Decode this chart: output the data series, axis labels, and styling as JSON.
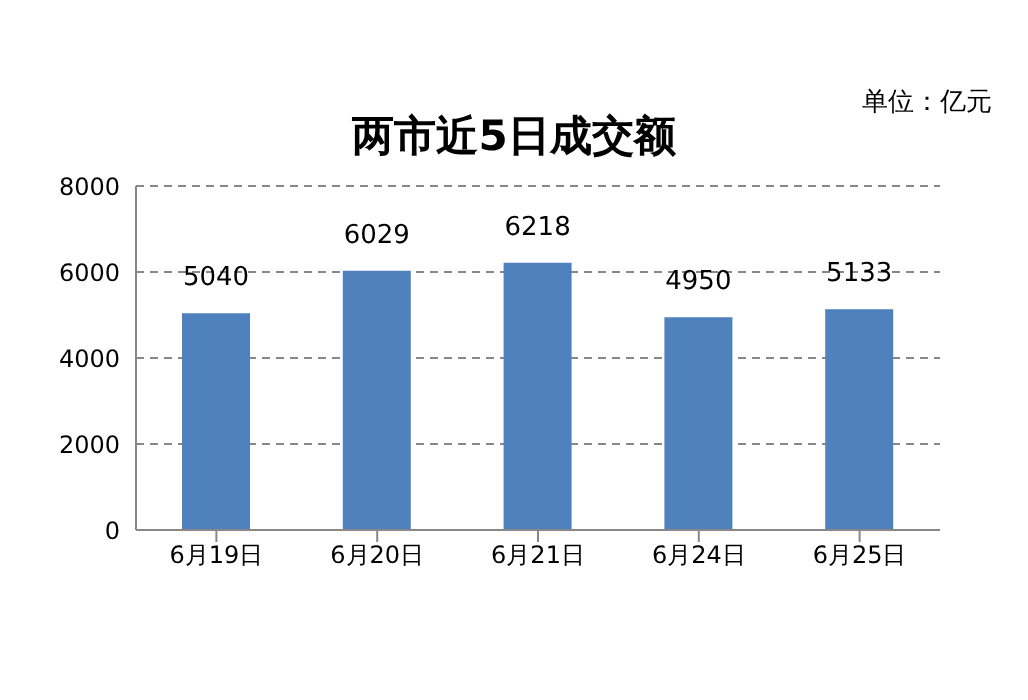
{
  "chart_data": {
    "type": "bar",
    "title": "两市近5日成交额",
    "annotations": [
      "单位：亿元"
    ],
    "categories": [
      "6月19日",
      "6月20日",
      "6月21日",
      "6月24日",
      "6月25日"
    ],
    "values": [
      5040,
      6029,
      6218,
      4950,
      5133
    ],
    "color": "#4f81bd",
    "ylim": [
      0,
      8000
    ],
    "yticks": [
      0,
      2000,
      4000,
      6000,
      8000
    ],
    "grid": "y",
    "data_labels": true
  }
}
